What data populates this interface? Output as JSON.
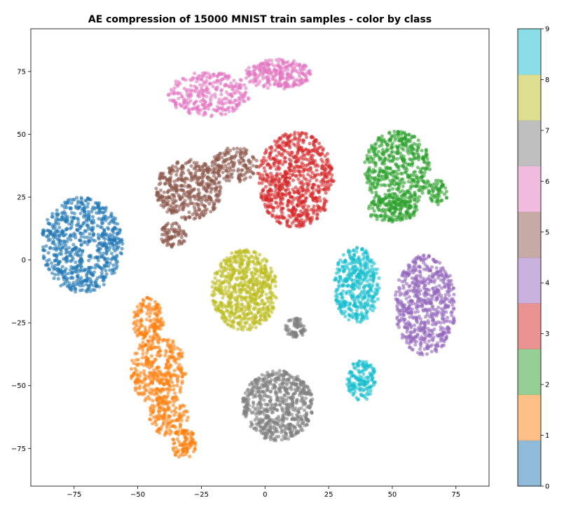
{
  "chart_data": {
    "type": "scatter",
    "title": "AE compression of 15000 MNIST train samples - color by class",
    "xlabel": "",
    "ylabel": "",
    "xlim": [
      -92,
      88
    ],
    "ylim": [
      -90,
      92
    ],
    "x_ticks": [
      -75,
      -50,
      -25,
      0,
      25,
      50,
      75
    ],
    "x_tick_labels": [
      "−75",
      "−50",
      "−25",
      "0",
      "25",
      "50",
      "75"
    ],
    "y_ticks": [
      -75,
      -50,
      -25,
      0,
      25,
      50,
      75
    ],
    "y_tick_labels": [
      "−75",
      "−50",
      "−25",
      "0",
      "25",
      "50",
      "75"
    ],
    "grid": false,
    "legend": "none",
    "marker_alpha": 0.6,
    "series": [
      {
        "class": 0,
        "color": "#1f77b4",
        "clusters": [
          {
            "cx": -72,
            "cy": 6,
            "rx": 16,
            "ry": 19,
            "n": 700
          }
        ]
      },
      {
        "class": 1,
        "color": "#ff7f0e",
        "clusters": [
          {
            "cx": -46,
            "cy": -24,
            "rx": 6,
            "ry": 9,
            "n": 140
          },
          {
            "cx": -42,
            "cy": -44,
            "rx": 11,
            "ry": 14,
            "n": 330
          },
          {
            "cx": -38,
            "cy": -62,
            "rx": 8,
            "ry": 8,
            "n": 140
          },
          {
            "cx": -32,
            "cy": -73,
            "rx": 5,
            "ry": 6,
            "n": 90
          }
        ]
      },
      {
        "class": 2,
        "color": "#2ca02c",
        "clusters": [
          {
            "cx": 52,
            "cy": 36,
            "rx": 13,
            "ry": 16,
            "n": 520
          },
          {
            "cx": 50,
            "cy": 20,
            "rx": 10,
            "ry": 5,
            "n": 140
          },
          {
            "cx": 68,
            "cy": 27,
            "rx": 4,
            "ry": 5,
            "n": 60
          }
        ]
      },
      {
        "class": 3,
        "color": "#d62728",
        "clusters": [
          {
            "cx": 12,
            "cy": 32,
            "rx": 15,
            "ry": 19,
            "n": 720
          }
        ]
      },
      {
        "class": 4,
        "color": "#9467bd",
        "clusters": [
          {
            "cx": 63,
            "cy": -18,
            "rx": 12,
            "ry": 20,
            "n": 620
          }
        ]
      },
      {
        "class": 5,
        "color": "#8c564b",
        "clusters": [
          {
            "cx": -30,
            "cy": 28,
            "rx": 13,
            "ry": 12,
            "n": 420
          },
          {
            "cx": -12,
            "cy": 38,
            "rx": 9,
            "ry": 7,
            "n": 160
          },
          {
            "cx": -36,
            "cy": 10,
            "rx": 5,
            "ry": 5,
            "n": 80
          }
        ]
      },
      {
        "class": 6,
        "color": "#e377c2",
        "clusters": [
          {
            "cx": -22,
            "cy": 66,
            "rx": 16,
            "ry": 9,
            "n": 300
          },
          {
            "cx": 5,
            "cy": 74,
            "rx": 13,
            "ry": 6,
            "n": 260
          }
        ]
      },
      {
        "class": 7,
        "color": "#7f7f7f",
        "clusters": [
          {
            "cx": 5,
            "cy": -58,
            "rx": 14,
            "ry": 14,
            "n": 620
          },
          {
            "cx": 12,
            "cy": -27,
            "rx": 4,
            "ry": 4,
            "n": 70
          }
        ]
      },
      {
        "class": 8,
        "color": "#bcbd22",
        "clusters": [
          {
            "cx": -8,
            "cy": -12,
            "rx": 13,
            "ry": 16,
            "n": 640
          }
        ]
      },
      {
        "class": 9,
        "color": "#17becf",
        "clusters": [
          {
            "cx": 36,
            "cy": -10,
            "rx": 9,
            "ry": 15,
            "n": 400
          },
          {
            "cx": 38,
            "cy": -48,
            "rx": 6,
            "ry": 8,
            "n": 150
          }
        ]
      }
    ],
    "colorbar": {
      "range": [
        0,
        9
      ],
      "tick_labels": [
        "0",
        "1",
        "2",
        "3",
        "4",
        "5",
        "6",
        "7",
        "8",
        "9"
      ],
      "colors": [
        "#1f77b4",
        "#ff7f0e",
        "#2ca02c",
        "#d62728",
        "#9467bd",
        "#8c564b",
        "#e377c2",
        "#7f7f7f",
        "#bcbd22",
        "#17becf"
      ],
      "alpha": 0.5
    }
  }
}
